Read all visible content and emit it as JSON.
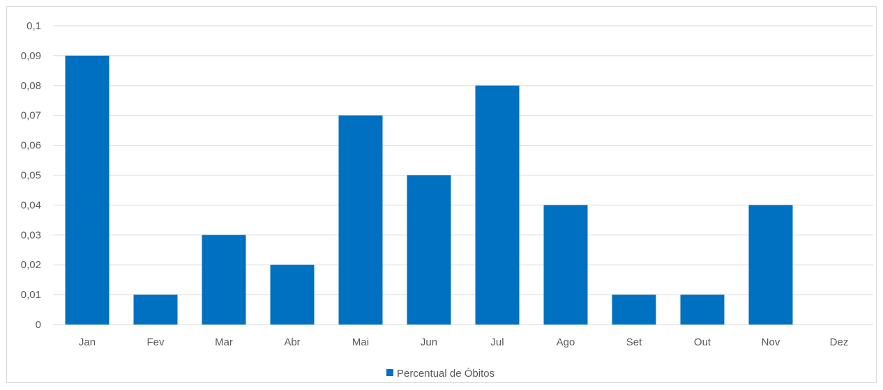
{
  "chart_data": {
    "type": "bar",
    "title": "",
    "xlabel": "",
    "ylabel": "",
    "categories": [
      "Jan",
      "Fev",
      "Mar",
      "Abr",
      "Mai",
      "Jun",
      "Jul",
      "Ago",
      "Set",
      "Out",
      "Nov",
      "Dez"
    ],
    "series": [
      {
        "name": "Percentual de Óbitos",
        "values": [
          0.09,
          0.01,
          0.03,
          0.02,
          0.07,
          0.05,
          0.08,
          0.04,
          0.01,
          0.01,
          0.04,
          0
        ],
        "color": "#0070c0"
      }
    ],
    "ylim": [
      0,
      0.1
    ],
    "yticks": [
      "0",
      "0,01",
      "0,02",
      "0,03",
      "0,04",
      "0,05",
      "0,06",
      "0,07",
      "0,08",
      "0,09",
      "0,1"
    ],
    "grid": true,
    "legend_position": "bottom-center",
    "colors": {
      "gridline": "#d9d9d9",
      "axis": "#d9d9d9",
      "text": "#595959"
    }
  }
}
